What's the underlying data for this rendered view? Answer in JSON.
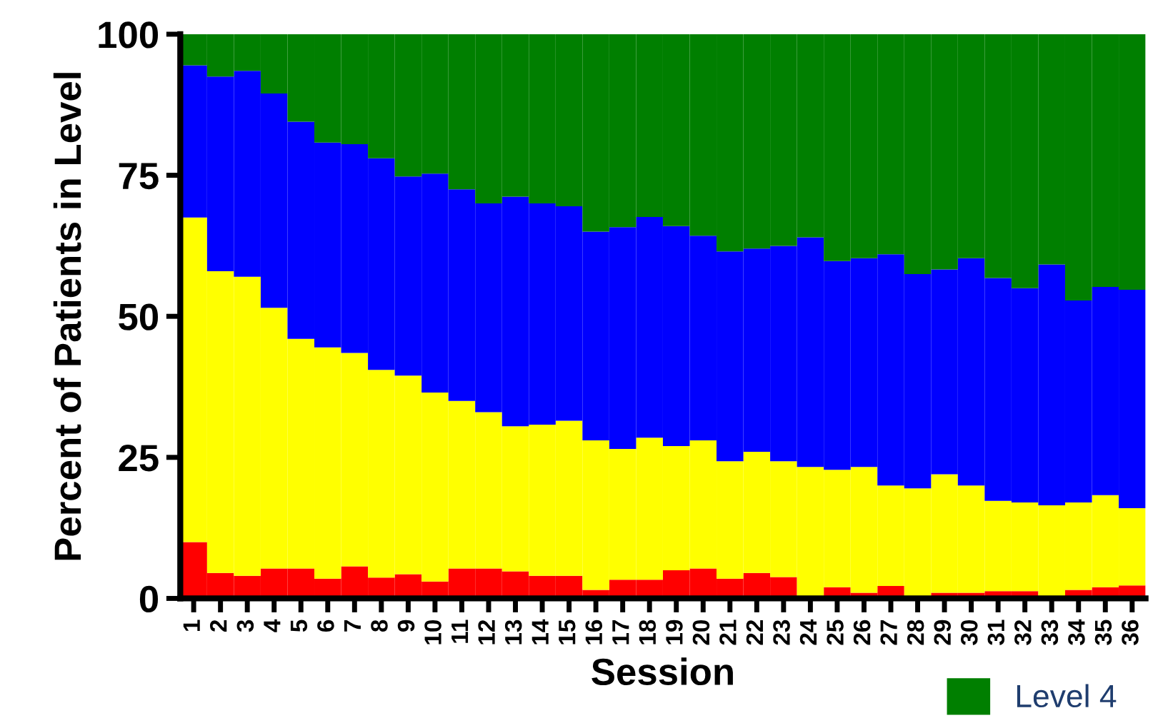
{
  "chart_data": {
    "type": "bar",
    "stacked": true,
    "xlabel": "Session",
    "ylabel": "Percent of Patients in Level",
    "categories": [
      "1",
      "2",
      "3",
      "4",
      "5",
      "6",
      "7",
      "8",
      "9",
      "10",
      "11",
      "12",
      "13",
      "14",
      "15",
      "16",
      "17",
      "18",
      "19",
      "20",
      "21",
      "22",
      "23",
      "24",
      "25",
      "26",
      "27",
      "28",
      "29",
      "30",
      "31",
      "32",
      "33",
      "34",
      "35",
      "36"
    ],
    "series": [
      {
        "color": "#ff0000",
        "values": [
          10,
          4.5,
          4,
          5.3,
          5.3,
          3.5,
          5.7,
          3.7,
          4.3,
          3,
          5.3,
          5.3,
          4.8,
          4,
          4,
          1.5,
          3.3,
          3.3,
          5,
          5.3,
          3.5,
          4.5,
          3.8,
          0,
          2,
          1,
          2.2,
          0,
          1,
          1,
          1.3,
          1.3,
          0,
          1.5,
          2,
          2.3
        ]
      },
      {
        "color": "#ffff00",
        "values": [
          57.5,
          53.5,
          53,
          46.2,
          40.7,
          41,
          37.8,
          36.8,
          35.2,
          33.5,
          29.7,
          27.7,
          25.7,
          26.8,
          27.5,
          26.5,
          23.2,
          25.2,
          22,
          22.7,
          20.8,
          21.5,
          20.5,
          23.3,
          20.8,
          22.3,
          17.8,
          19.5,
          21,
          19,
          16,
          15.7,
          16.5,
          15.5,
          16.3,
          13.7
        ]
      },
      {
        "color": "#0000ff",
        "values": [
          27,
          34.5,
          36.5,
          38,
          38.5,
          36.3,
          37,
          37.5,
          35.3,
          38.8,
          37.5,
          37,
          40.7,
          39.2,
          38,
          37,
          39.3,
          39.1,
          39,
          36.3,
          37.2,
          36,
          38.2,
          40.7,
          37,
          37,
          41,
          38,
          36.3,
          40.3,
          39.5,
          38,
          42.7,
          35.8,
          36.9,
          38.7
        ]
      },
      {
        "name": "Level 4",
        "color": "#007f00",
        "values": [
          5.5,
          7.5,
          6.5,
          10.5,
          15.5,
          19.2,
          19.5,
          22,
          25.2,
          24.7,
          27.5,
          30,
          28.8,
          30,
          30.5,
          35,
          34.2,
          32.4,
          34,
          35.7,
          38.5,
          38,
          37.5,
          36,
          40.2,
          39.7,
          39,
          42.5,
          41.7,
          39.7,
          43.2,
          45,
          40.8,
          47.2,
          44.8,
          45.3
        ]
      }
    ],
    "ylim": [
      0,
      100
    ],
    "yticks": [
      0,
      25,
      50,
      75,
      100
    ],
    "grid": false,
    "legend": "bottom right"
  }
}
